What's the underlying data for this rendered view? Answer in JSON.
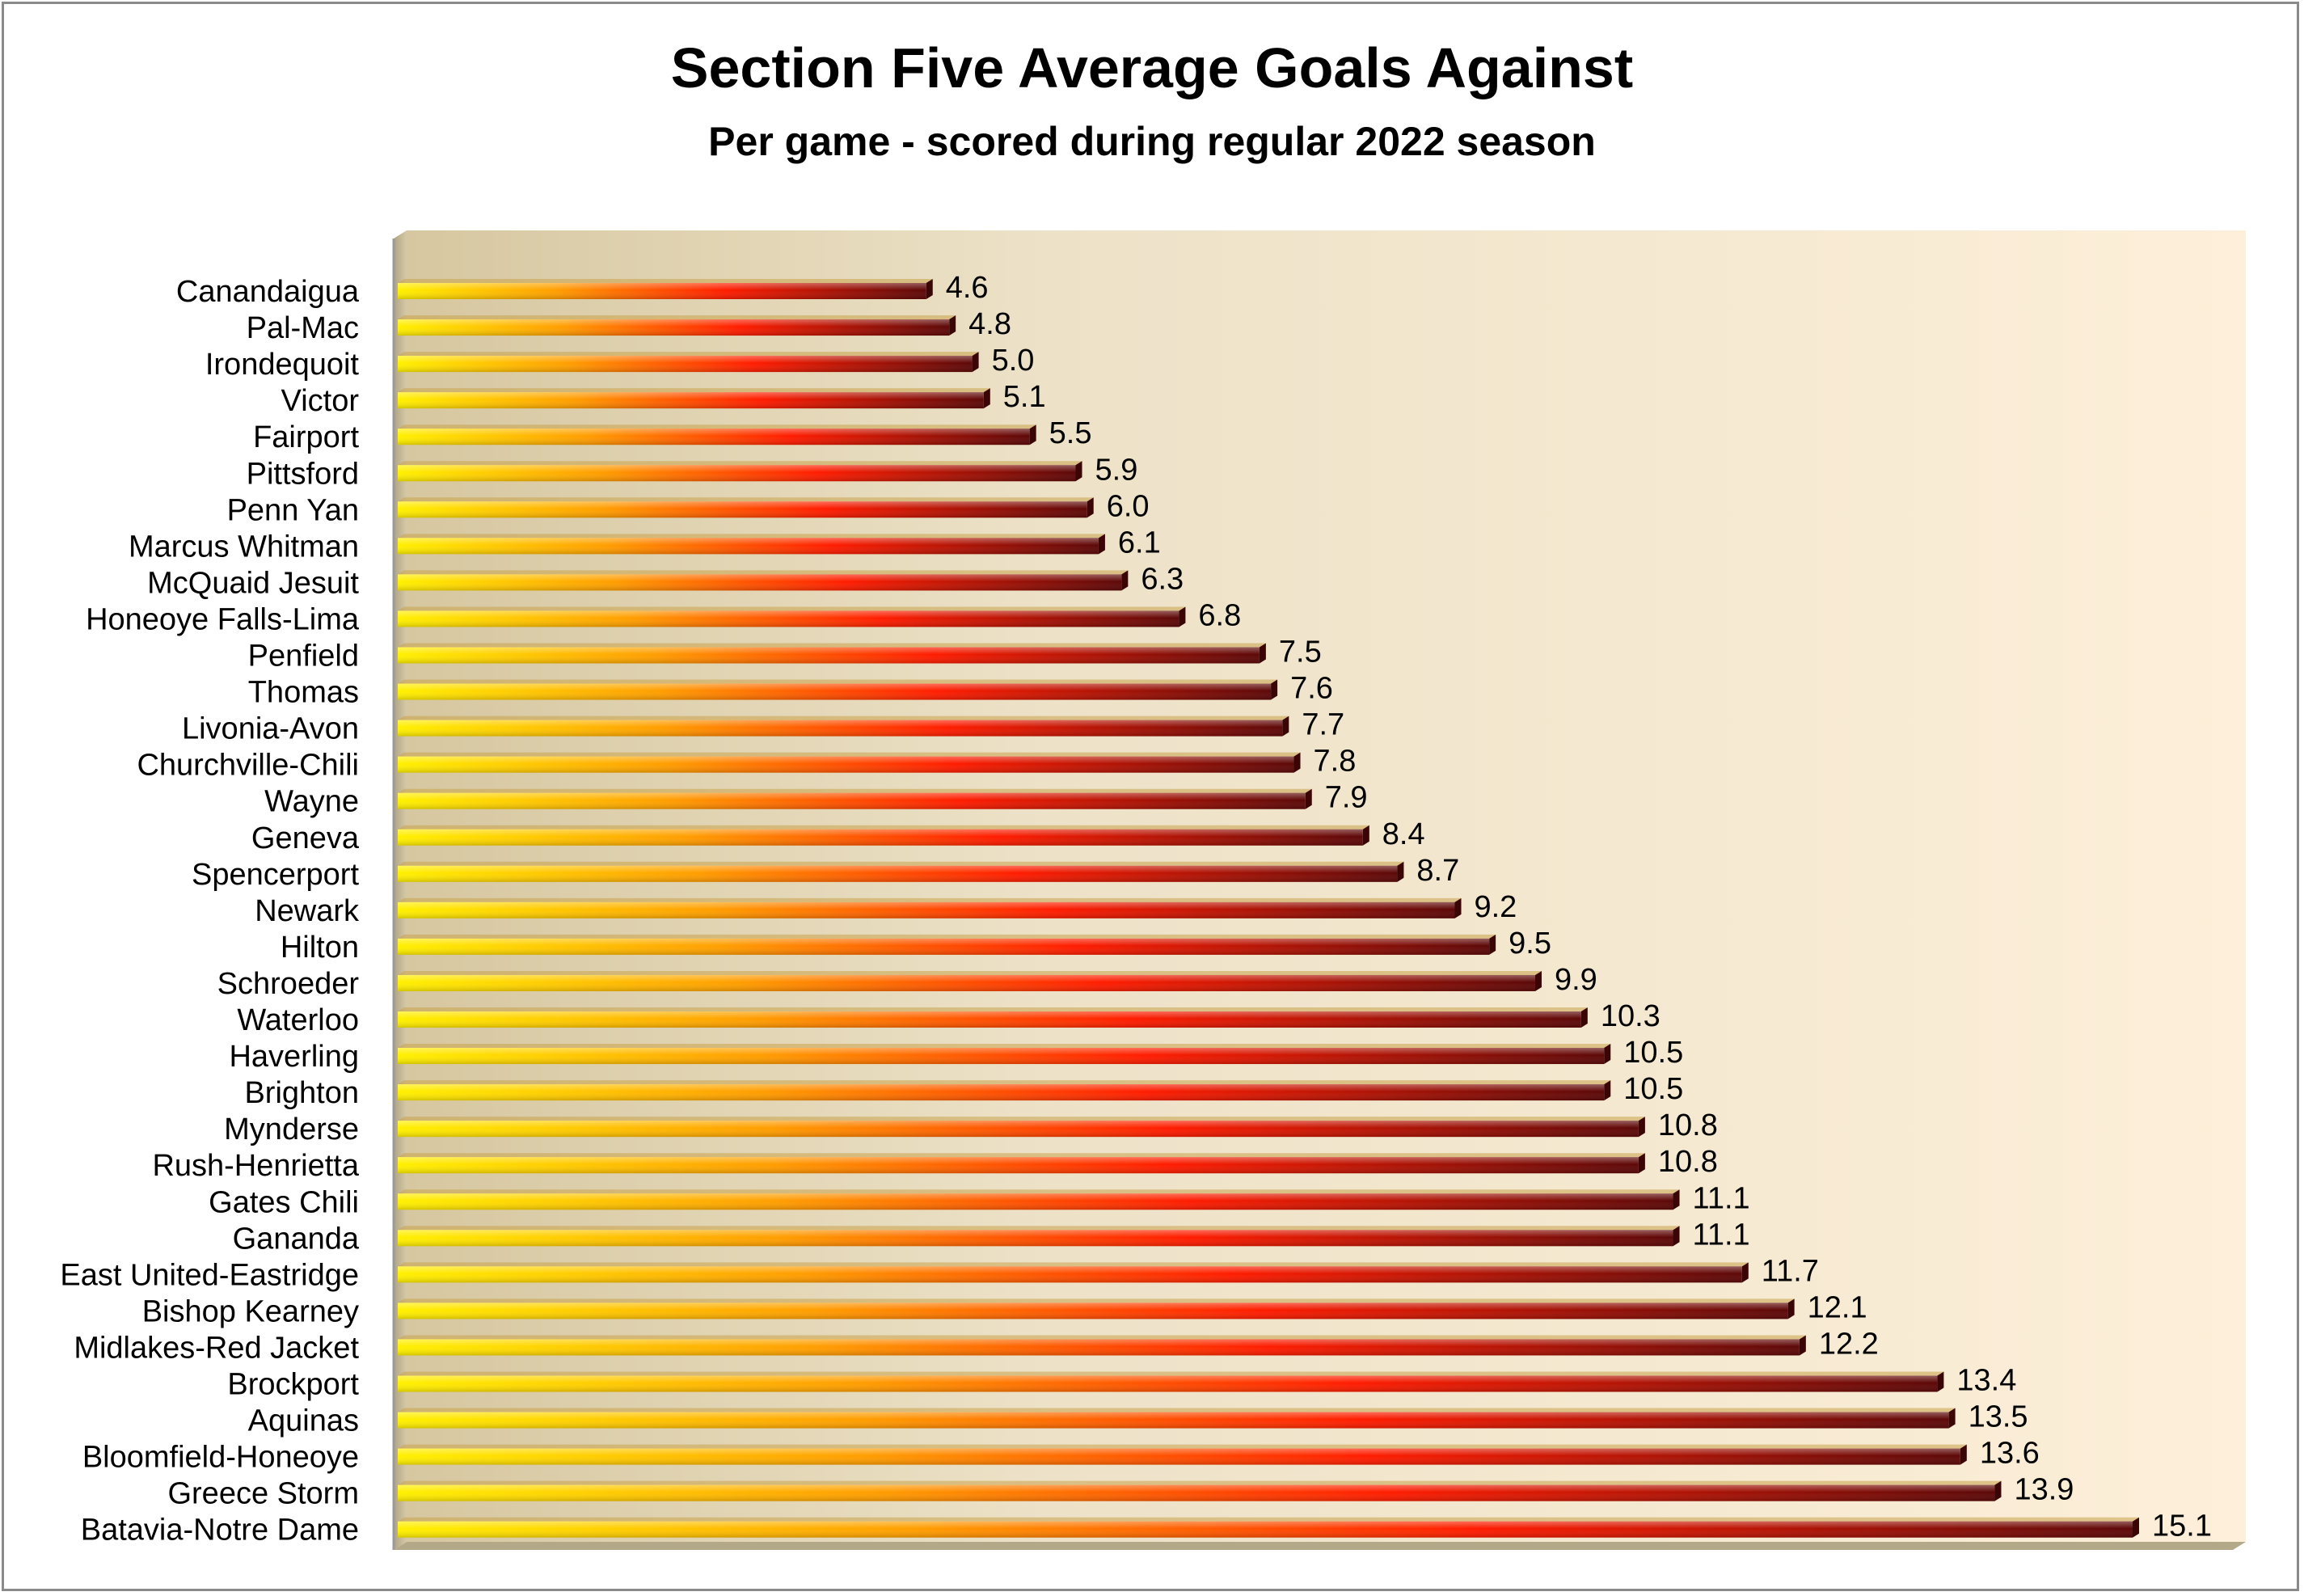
{
  "chart_data": {
    "type": "bar",
    "orientation": "horizontal",
    "title": "Section Five Average Goals Against",
    "subtitle": "Per game - scored during regular 2022 season",
    "categories": [
      "Canandaigua",
      "Pal-Mac",
      "Irondequoit",
      "Victor",
      "Fairport",
      "Pittsford",
      "Penn Yan",
      "Marcus Whitman",
      "McQuaid Jesuit",
      "Honeoye Falls-Lima",
      "Penfield",
      "Thomas",
      "Livonia-Avon",
      "Churchville-Chili",
      "Wayne",
      "Geneva",
      "Spencerport",
      "Newark",
      "Hilton",
      "Schroeder",
      "Waterloo",
      "Haverling",
      "Brighton",
      "Mynderse",
      "Rush-Henrietta",
      "Gates Chili",
      "Gananda",
      "East United-Eastridge",
      "Bishop Kearney",
      "Midlakes-Red Jacket",
      "Brockport",
      "Aquinas",
      "Bloomfield-Honeoye",
      "Greece Storm",
      "Batavia-Notre Dame"
    ],
    "values": [
      4.6,
      4.8,
      5.0,
      5.1,
      5.5,
      5.9,
      6.0,
      6.1,
      6.3,
      6.8,
      7.5,
      7.6,
      7.7,
      7.8,
      7.9,
      8.4,
      8.7,
      9.2,
      9.5,
      9.9,
      10.3,
      10.5,
      10.5,
      10.8,
      10.8,
      11.1,
      11.1,
      11.7,
      12.1,
      12.2,
      13.4,
      13.5,
      13.6,
      13.9,
      15.1
    ],
    "value_labels": [
      "4.6",
      "4.8",
      "5.0",
      "5.1",
      "5.5",
      "5.9",
      "6.0",
      "6.1",
      "6.3",
      "6.8",
      "7.5",
      "7.6",
      "7.7",
      "7.8",
      "7.9",
      "8.4",
      "8.7",
      "9.2",
      "9.5",
      "9.9",
      "10.3",
      "10.5",
      "10.5",
      "10.8",
      "10.8",
      "11.1",
      "11.1",
      "11.7",
      "12.1",
      "12.2",
      "13.4",
      "13.5",
      "13.6",
      "13.9",
      "15.1"
    ],
    "xlim": [
      0,
      16
    ],
    "grid": false,
    "legend": "none",
    "colors": {
      "bar_start": "#ffe600",
      "bar_mid1": "#ff9a00",
      "bar_mid2": "#ff1a00",
      "bar_end": "#5a0a0a",
      "plot_bg_left": "#d8c9a4",
      "plot_bg_right": "#fdf0dc"
    }
  }
}
